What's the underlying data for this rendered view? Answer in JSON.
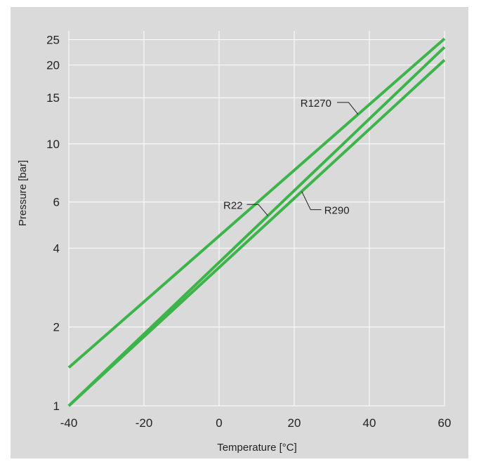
{
  "chart_data": {
    "type": "line",
    "xlabel": "Temperature  [°C]",
    "ylabel": "Pressure  [bar]",
    "xlim": [
      -40,
      60
    ],
    "ylim": [
      1,
      27
    ],
    "y_scale": "log",
    "grid": true,
    "x_ticks": [
      "-40",
      "-20",
      "0",
      "20",
      "40",
      "60"
    ],
    "y_ticks": [
      "1",
      "2",
      "4",
      "6",
      "10",
      "15",
      "20",
      "25"
    ],
    "line_color": "#3cb44a",
    "background_color": "#dadada",
    "grid_color": "#ffffff",
    "series": [
      {
        "name": "R1270",
        "x": [
          -40,
          60
        ],
        "y": [
          1.4,
          25.2
        ]
      },
      {
        "name": "R22",
        "x": [
          -40,
          60
        ],
        "y": [
          1.0,
          23.4
        ]
      },
      {
        "name": "R290",
        "x": [
          -40,
          60
        ],
        "y": [
          1.0,
          20.9
        ]
      }
    ],
    "annotations": [
      {
        "text": "R1270",
        "series": "R1270",
        "at_x": 37
      },
      {
        "text": "R22",
        "series": "R22",
        "at_x": 13
      },
      {
        "text": "R290",
        "series": "R290",
        "at_x": 22
      }
    ]
  }
}
